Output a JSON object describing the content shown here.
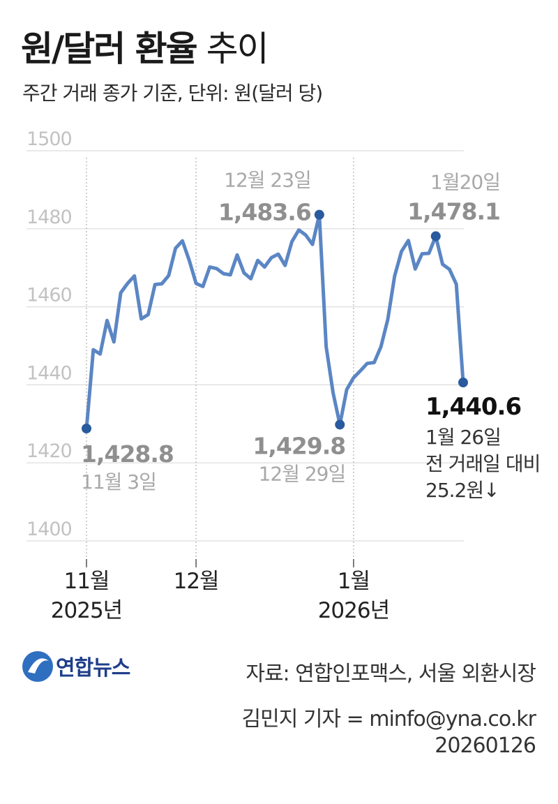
{
  "header": {
    "title_bold": "원/달러 환율",
    "title_regular": " 추이",
    "subtitle": "주간 거래 종가 기준, 단위: 원(달러 당)"
  },
  "chart_data": {
    "type": "line",
    "title": "원/달러 환율 추이",
    "ylabel": "",
    "xlabel": "",
    "ylim": [
      1400,
      1500
    ],
    "yticks": [
      1400,
      1420,
      1440,
      1460,
      1480,
      1500
    ],
    "grid": true,
    "series_color": "#5b86c4",
    "series": [
      {
        "values": [
          1428.8,
          1449.0,
          1447.9,
          1456.5,
          1451.0,
          1463.6,
          1466.0,
          1467.9,
          1456.9,
          1458.0,
          1465.7,
          1465.9,
          1468.0,
          1475.0,
          1476.9,
          1471.9,
          1466.0,
          1465.2,
          1470.2,
          1469.8,
          1468.5,
          1468.2,
          1473.3,
          1468.7,
          1467.2,
          1471.9,
          1470.2,
          1472.6,
          1473.5,
          1470.6,
          1476.7,
          1479.7,
          1478.4,
          1476.0,
          1483.6,
          1449.8,
          1438.0,
          1429.8,
          1438.8,
          1441.8,
          1443.6,
          1445.5,
          1445.7,
          1449.8,
          1456.8,
          1467.9,
          1474.2,
          1477.0,
          1469.7,
          1473.6,
          1473.7,
          1478.1,
          1470.9,
          1469.6,
          1465.8,
          1440.6
        ]
      }
    ],
    "x_ticks": [
      {
        "month": "11월",
        "year": "2025년"
      },
      {
        "month": "12월",
        "year": ""
      },
      {
        "month": "1월",
        "year": "2026년"
      }
    ],
    "annotations": [
      {
        "point": 0,
        "value_text": "1,428.8",
        "date_text": "11월 3일"
      },
      {
        "point": 34,
        "value_text": "1,483.6",
        "date_text": "12월 23일"
      },
      {
        "point": 37,
        "value_text": "1,429.8",
        "date_text": "12월 29일"
      },
      {
        "point": 51,
        "value_text": "1,478.1",
        "date_text": "1월20일"
      },
      {
        "point": 55,
        "value_text": "1,440.6",
        "date_text": "1월 26일",
        "note_line1": "전 거래일 대비",
        "note_line2": "25.2원↓"
      }
    ]
  },
  "footer": {
    "logo_text": "연합뉴스",
    "source": "자료: 연합인포맥스, 서울 외환시장",
    "reporter": "김민지 기자 = minfo@yna.co.kr",
    "date_code": "20260126"
  }
}
